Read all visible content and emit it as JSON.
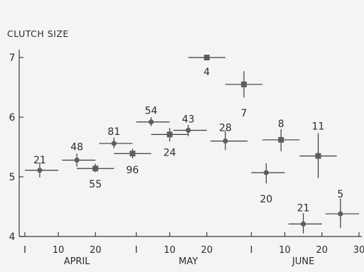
{
  "chart_data": {
    "type": "scatter",
    "title": "",
    "ylabel": "CLUTCH SIZE",
    "xlabel": "",
    "ylim": [
      4,
      7
    ],
    "yticks": [
      4,
      5,
      6,
      7
    ],
    "xlim": [
      "Apr 1",
      "Jun 30"
    ],
    "xticks": [
      {
        "label": "I",
        "date": "Apr 1"
      },
      {
        "label": "10",
        "date": "Apr 10"
      },
      {
        "label": "20",
        "date": "Apr 20"
      },
      {
        "label": "I",
        "date": "May 1"
      },
      {
        "label": "10",
        "date": "May 10"
      },
      {
        "label": "20",
        "date": "May 20"
      },
      {
        "label": "I",
        "date": "Jun 1"
      },
      {
        "label": "10",
        "date": "Jun 10"
      },
      {
        "label": "20",
        "date": "Jun 20"
      },
      {
        "label": "30",
        "date": "Jun 30"
      }
    ],
    "months": [
      {
        "label": "APRIL",
        "date": "Apr 15"
      },
      {
        "label": "MAY",
        "date": "May 15"
      },
      {
        "label": "JUNE",
        "date": "Jun 15"
      }
    ],
    "series": [
      {
        "marker": "circle",
        "color": "#5e5e5e",
        "points": [
          {
            "x": "Apr 5",
            "xmin": "Apr 1",
            "xmax": "Apr 10",
            "y": 5.11,
            "ymin": 4.99,
            "ymax": 5.24,
            "n": "21"
          },
          {
            "x": "Apr 15",
            "xmin": "Apr 11",
            "xmax": "Apr 20",
            "y": 5.28,
            "ymin": 5.17,
            "ymax": 5.39,
            "n": "48"
          },
          {
            "x": "Apr 25",
            "xmin": "Apr 21",
            "xmax": "Apr 30",
            "y": 5.56,
            "ymin": 5.48,
            "ymax": 5.66,
            "n": "81"
          },
          {
            "x": "May 5",
            "xmin": "May 1",
            "xmax": "May 10",
            "y": 5.92,
            "ymin": 5.85,
            "ymax": 6.0,
            "n": "54"
          },
          {
            "x": "May 15",
            "xmin": "May 11",
            "xmax": "May 20",
            "y": 5.78,
            "ymin": 5.68,
            "ymax": 5.87,
            "n": "43"
          },
          {
            "x": "May 25",
            "xmin": "May 21",
            "xmax": "May 31",
            "y": 5.6,
            "ymin": 5.45,
            "ymax": 5.78,
            "n": "28"
          },
          {
            "x": "Jun 5",
            "xmin": "Jun 1",
            "xmax": "Jun 10",
            "y": 5.07,
            "ymin": 4.89,
            "ymax": 5.23,
            "n": "20"
          },
          {
            "x": "Jun 15",
            "xmin": "Jun 11",
            "xmax": "Jun 20",
            "y": 4.21,
            "ymin": 4.05,
            "ymax": 4.39,
            "n": "21"
          },
          {
            "x": "Jun 25",
            "xmin": "Jun 21",
            "xmax": "Jun 30",
            "y": 4.38,
            "ymin": 4.14,
            "ymax": 4.64,
            "n": "5"
          }
        ]
      },
      {
        "marker": "square",
        "color": "#5e5e5e",
        "points": [
          {
            "x": "Apr 20",
            "xmin": "Apr 15",
            "xmax": "Apr 25",
            "y": 5.14,
            "ymin": 5.08,
            "ymax": 5.22,
            "n": "55"
          },
          {
            "x": "Apr 30",
            "xmin": "Apr 25",
            "xmax": "May 5",
            "y": 5.39,
            "ymin": 5.31,
            "ymax": 5.47,
            "n": "96"
          },
          {
            "x": "May 10",
            "xmin": "May 5",
            "xmax": "May 15",
            "y": 5.71,
            "ymin": 5.59,
            "ymax": 5.82,
            "n": "24"
          },
          {
            "x": "May 20",
            "xmin": "May 15",
            "xmax": "May 25",
            "y": 7.0,
            "ymin": 7.0,
            "ymax": 7.0,
            "n": "4"
          },
          {
            "x": "May 30",
            "xmin": "May 25",
            "xmax": "Jun 4",
            "y": 6.55,
            "ymin": 6.33,
            "ymax": 6.77,
            "n": "7"
          },
          {
            "x": "Jun 9",
            "xmin": "Jun 4",
            "xmax": "Jun 14",
            "y": 5.62,
            "ymin": 5.43,
            "ymax": 5.8,
            "n": "8"
          },
          {
            "x": "Jun 19",
            "xmin": "Jun 14",
            "xmax": "Jun 24",
            "y": 5.35,
            "ymin": 4.98,
            "ymax": 5.73,
            "n": "11"
          }
        ]
      }
    ]
  }
}
